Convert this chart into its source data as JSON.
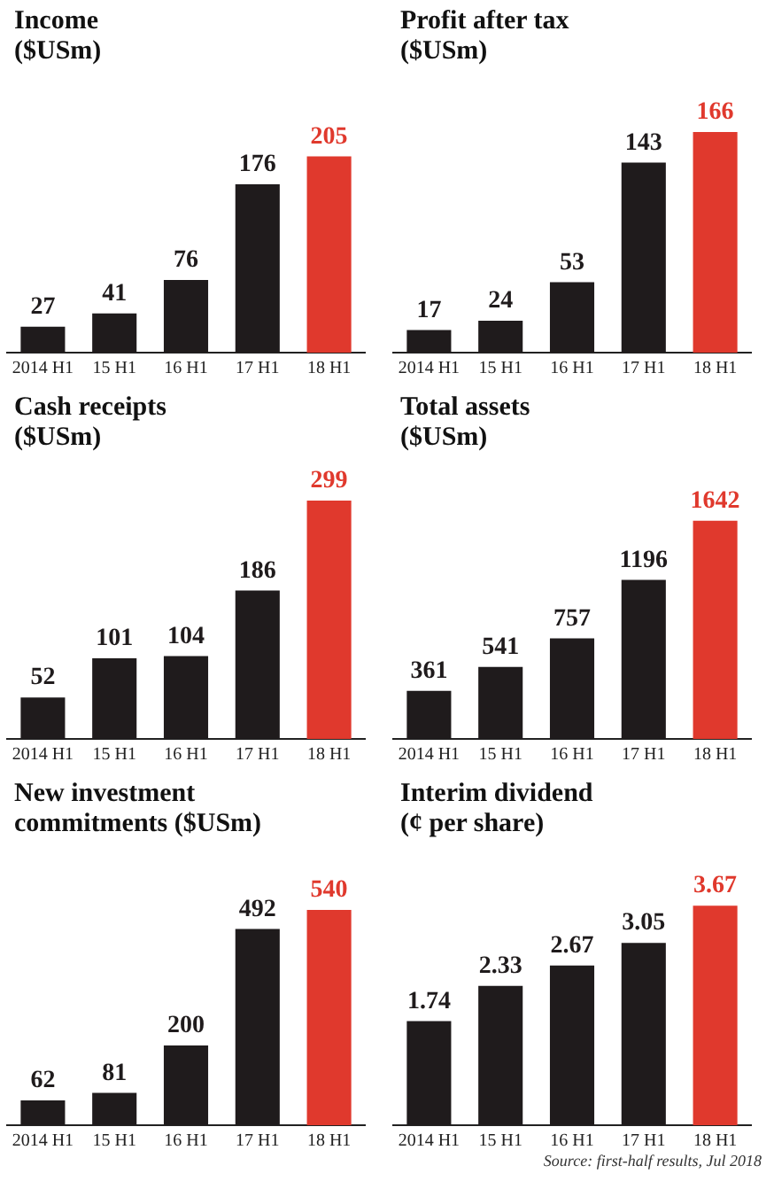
{
  "chart_data": [
    {
      "type": "bar",
      "title": "Income\n($USm)",
      "categories": [
        "2014 H1",
        "15 H1",
        "16 H1",
        "17 H1",
        "18 H1"
      ],
      "values": [
        27,
        41,
        76,
        176,
        205
      ],
      "colors": [
        "#1f1b1c",
        "#1f1b1c",
        "#1f1b1c",
        "#1f1b1c",
        "#e0392d"
      ],
      "data_labels": true
    },
    {
      "type": "bar",
      "title": "Profit after tax\n($USm)",
      "categories": [
        "2014 H1",
        "15 H1",
        "16 H1",
        "17 H1",
        "18 H1"
      ],
      "values": [
        17,
        24,
        53,
        143,
        166
      ],
      "colors": [
        "#1f1b1c",
        "#1f1b1c",
        "#1f1b1c",
        "#1f1b1c",
        "#e0392d"
      ],
      "data_labels": true
    },
    {
      "type": "bar",
      "title": "Cash receipts\n($USm)",
      "categories": [
        "2014 H1",
        "15 H1",
        "16 H1",
        "17 H1",
        "18 H1"
      ],
      "values": [
        52,
        101,
        104,
        186,
        299
      ],
      "colors": [
        "#1f1b1c",
        "#1f1b1c",
        "#1f1b1c",
        "#1f1b1c",
        "#e0392d"
      ],
      "data_labels": true
    },
    {
      "type": "bar",
      "title": "Total assets\n($USm)",
      "categories": [
        "2014 H1",
        "15 H1",
        "16 H1",
        "17 H1",
        "18 H1"
      ],
      "values": [
        361,
        541,
        757,
        1196,
        1642
      ],
      "colors": [
        "#1f1b1c",
        "#1f1b1c",
        "#1f1b1c",
        "#1f1b1c",
        "#e0392d"
      ],
      "data_labels": true
    },
    {
      "type": "bar",
      "title": "New investment\ncommitments ($USm)",
      "categories": [
        "2014 H1",
        "15 H1",
        "16 H1",
        "17 H1",
        "18 H1"
      ],
      "values": [
        62,
        81,
        200,
        492,
        540
      ],
      "colors": [
        "#1f1b1c",
        "#1f1b1c",
        "#1f1b1c",
        "#1f1b1c",
        "#e0392d"
      ],
      "data_labels": true
    },
    {
      "type": "bar",
      "title": "Interim dividend\n(¢ per share)",
      "categories": [
        "2014 H1",
        "15 H1",
        "16 H1",
        "17 H1",
        "18 H1"
      ],
      "values": [
        1.74,
        2.33,
        2.67,
        3.05,
        3.67
      ],
      "colors": [
        "#1f1b1c",
        "#1f1b1c",
        "#1f1b1c",
        "#1f1b1c",
        "#e0392d"
      ],
      "data_labels": true,
      "annotations": [
        "Source: first-half results, Jul 2018"
      ]
    }
  ]
}
